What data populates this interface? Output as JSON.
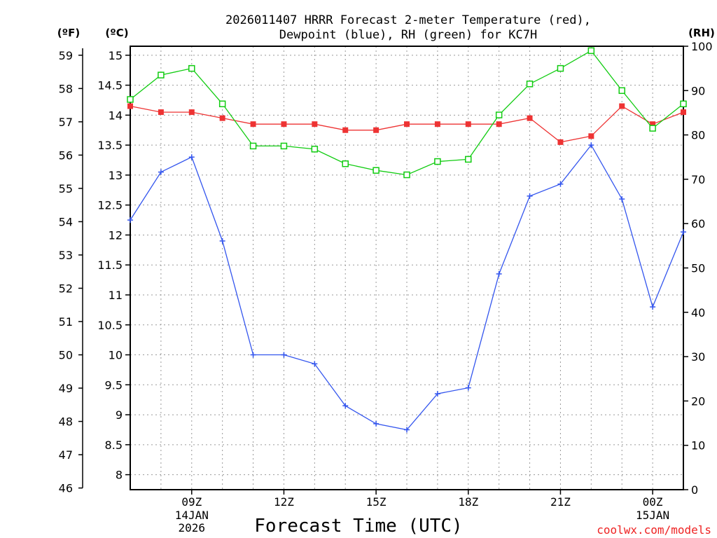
{
  "chart_data": {
    "type": "line",
    "title_line1": "2026011407 HRRR Forecast 2-meter Temperature (red),",
    "title_line2": "Dewpoint (blue), RH (green) for KC7H",
    "xlabel": "Forecast Time (UTC)",
    "credit": "coolwx.com/models",
    "left_outer_axis": {
      "unit": "(ºF)",
      "ticks": [
        59,
        58,
        57,
        56,
        55,
        54,
        53,
        52,
        51,
        50,
        49,
        48,
        47,
        46
      ],
      "labels": [
        "59",
        "58",
        "57",
        "56",
        "55",
        "54",
        "53",
        "52",
        "51",
        "50",
        "49",
        "48",
        "47",
        "46"
      ]
    },
    "left_inner_axis": {
      "unit": "(ºC)",
      "ylim": [
        7.75,
        15.15
      ],
      "ticks": [
        15,
        14.5,
        14,
        13.5,
        13,
        12.5,
        12,
        11.5,
        11,
        10.5,
        10,
        9.5,
        9,
        8.5,
        8
      ],
      "labels": [
        "15",
        "14.5",
        "14",
        "13.5",
        "13",
        "12.5",
        "12",
        "11.5",
        "11",
        "10.5",
        "10",
        "9.5",
        "9",
        "8.5",
        "8"
      ]
    },
    "right_axis": {
      "unit": "(RH)",
      "ylim": [
        0,
        100
      ],
      "ticks": [
        100,
        90,
        80,
        70,
        60,
        50,
        40,
        30,
        20,
        10,
        0
      ],
      "labels": [
        "100",
        "90",
        "80",
        "70",
        "60",
        "50",
        "40",
        "30",
        "20",
        "10",
        "0"
      ]
    },
    "x_hours": [
      7,
      8,
      9,
      10,
      11,
      12,
      13,
      14,
      15,
      16,
      17,
      18,
      19,
      20,
      21,
      22,
      23,
      24,
      25
    ],
    "x_tick_hours": [
      9,
      12,
      15,
      18,
      21,
      24
    ],
    "x_tick_labels": [
      "09Z",
      "12Z",
      "15Z",
      "18Z",
      "21Z",
      "00Z"
    ],
    "date_labels": [
      {
        "hour": 9,
        "lines": [
          "14JAN",
          "2026"
        ]
      },
      {
        "hour": 24,
        "lines": [
          "15JAN"
        ]
      }
    ],
    "series": [
      {
        "name": "Temperature",
        "units": "°C",
        "axis": "celsius",
        "color": "#ee3333",
        "marker": "filled-square",
        "values": [
          14.15,
          14.05,
          14.05,
          13.95,
          13.85,
          13.85,
          13.85,
          13.75,
          13.75,
          13.85,
          13.85,
          13.85,
          13.85,
          13.95,
          13.55,
          13.65,
          14.15,
          13.85,
          14.05
        ]
      },
      {
        "name": "Dewpoint",
        "units": "°C",
        "axis": "celsius",
        "color": "#3355ee",
        "marker": "plus",
        "values": [
          12.25,
          13.05,
          13.3,
          11.9,
          10.0,
          10.0,
          9.85,
          9.15,
          8.85,
          8.75,
          9.35,
          9.45,
          11.35,
          12.65,
          12.85,
          13.5,
          12.6,
          10.8,
          12.05
        ]
      },
      {
        "name": "Relative Humidity",
        "units": "%",
        "axis": "rh",
        "color": "#11cc11",
        "marker": "open-square",
        "values": [
          88,
          93.5,
          95,
          87,
          77.5,
          77.5,
          76.8,
          73.5,
          72,
          71,
          74,
          74.5,
          84.5,
          91.5,
          95,
          99,
          90,
          81.5,
          87
        ]
      }
    ]
  }
}
